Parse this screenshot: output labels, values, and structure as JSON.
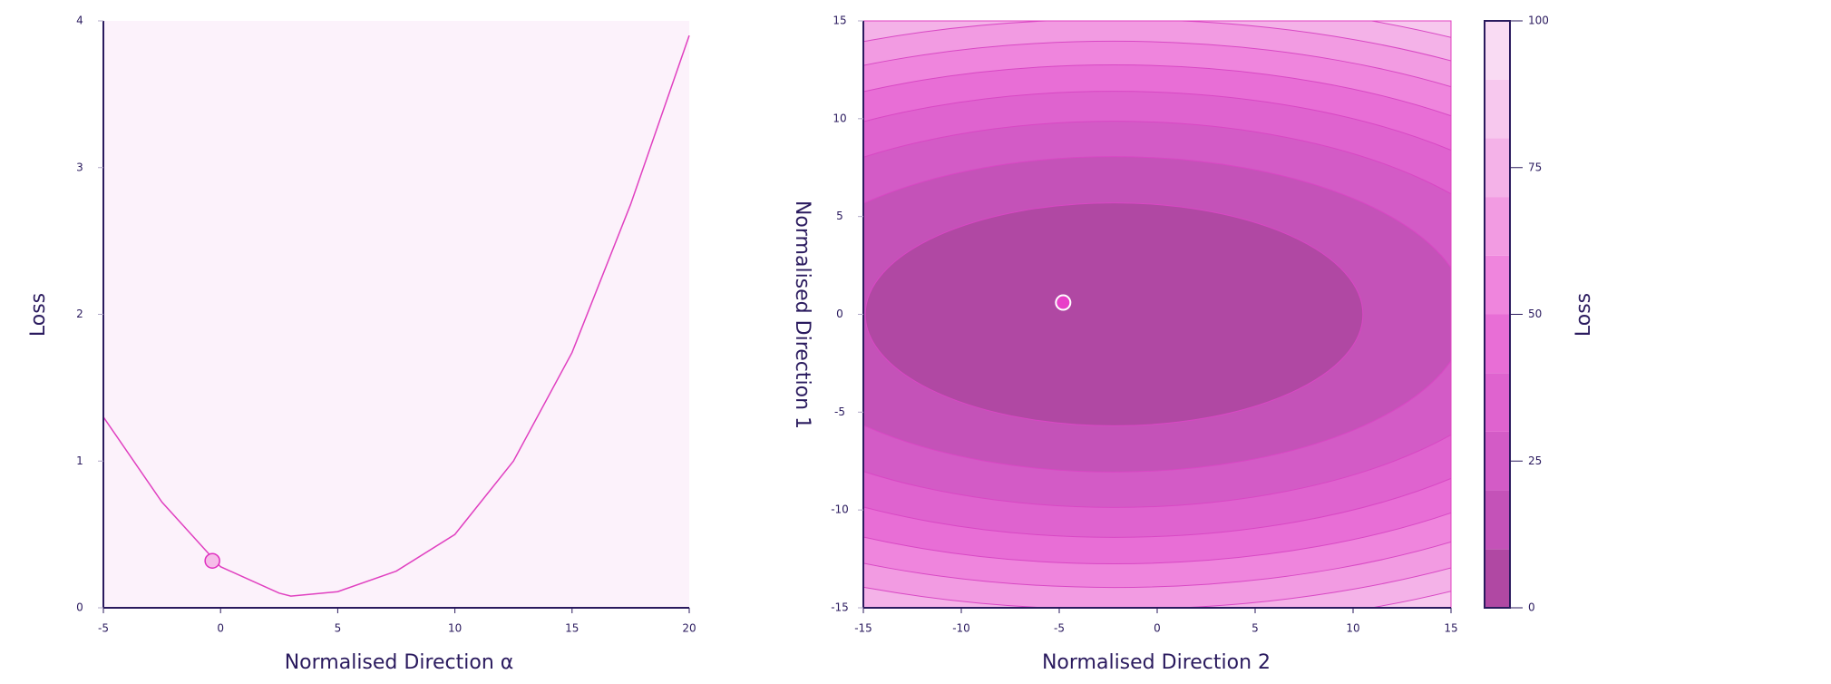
{
  "chart_data": [
    {
      "type": "line",
      "x_label": "Normalised Direction α",
      "y_label": "Loss",
      "x": [
        -5,
        -2.5,
        0,
        2.5,
        3,
        5,
        7.5,
        10,
        12.5,
        15,
        17.5,
        20
      ],
      "series": [
        {
          "color": "#e040c0",
          "values": [
            1.3,
            0.72,
            0.28,
            0.1,
            0.08,
            0.11,
            0.25,
            0.5,
            1.0,
            1.74,
            2.75,
            3.9
          ]
        }
      ],
      "point": {
        "x": -0.35,
        "y": 0.32,
        "color": "#f6bde9",
        "edge": "#e030c0"
      },
      "background": "#fcf2fb",
      "xlim": [
        -5,
        20
      ],
      "xticks": [
        -5,
        0,
        5,
        10,
        15,
        20
      ],
      "ylim": [
        0,
        4
      ],
      "yticks": [
        0,
        1,
        2,
        3,
        4
      ]
    },
    {
      "type": "contour",
      "x_label": "Normalised Direction 2",
      "y_label": "Normalised Direction 1",
      "colorbar_label": "Loss",
      "center": [
        -2.2,
        0
      ],
      "contours": [
        {
          "level": 10,
          "rx": 12.7,
          "ry": 5.7
        },
        {
          "level": 20,
          "rx": 18.0,
          "ry": 8.06
        },
        {
          "level": 30,
          "rx": 22.0,
          "ry": 9.87
        },
        {
          "level": 40,
          "rx": 25.4,
          "ry": 11.4
        },
        {
          "level": 50,
          "rx": 28.4,
          "ry": 12.75
        },
        {
          "level": 60,
          "rx": 31.1,
          "ry": 13.96
        },
        {
          "level": 70,
          "rx": 33.6,
          "ry": 15.08
        },
        {
          "level": 80,
          "rx": 35.9,
          "ry": 16.12
        },
        {
          "level": 90,
          "rx": 38.1,
          "ry": 17.1
        }
      ],
      "band_colors": [
        "#b048a3",
        "#c452b8",
        "#d35bc6",
        "#df63cf",
        "#e86ed6",
        "#ef85dd",
        "#f29be2",
        "#f4b2e8",
        "#f7c8ee",
        "#f9dbf3"
      ],
      "point": {
        "x": -4.8,
        "y": 0.6,
        "color": "#e840c8",
        "edge": "#ffffff"
      },
      "xlim": [
        -15,
        15
      ],
      "xticks": [
        -15,
        -10,
        -5,
        0,
        5,
        10,
        15
      ],
      "ylim": [
        -15,
        15
      ],
      "yticks": [
        -15,
        -10,
        -5,
        0,
        5,
        10,
        15
      ],
      "clim": [
        0,
        100
      ],
      "cticks": [
        0,
        25,
        50,
        75,
        100
      ]
    }
  ]
}
